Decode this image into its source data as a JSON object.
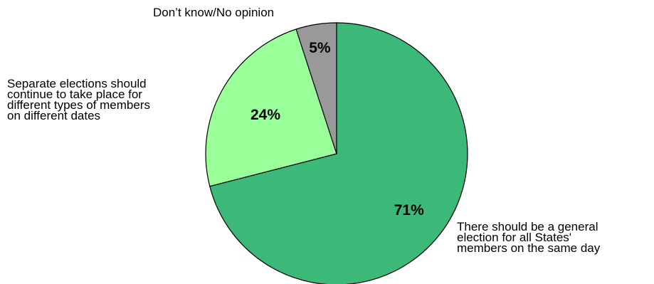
{
  "chart_data": {
    "type": "pie",
    "categories": [
      "There should be a general\nelection for all States'\nmembers on the same day",
      "Separate elections should\ncontinue to take place for\ndifferent types of members\non different dates",
      "Don’t know/No opinion"
    ],
    "values": [
      71,
      24,
      5
    ],
    "value_labels": [
      "71%",
      "24%",
      "5%"
    ],
    "colors": [
      "#3cb878",
      "#99ff99",
      "#999999"
    ],
    "start_angle": "12 o'clock",
    "direction": "clockwise",
    "legend": "none",
    "title": ""
  }
}
